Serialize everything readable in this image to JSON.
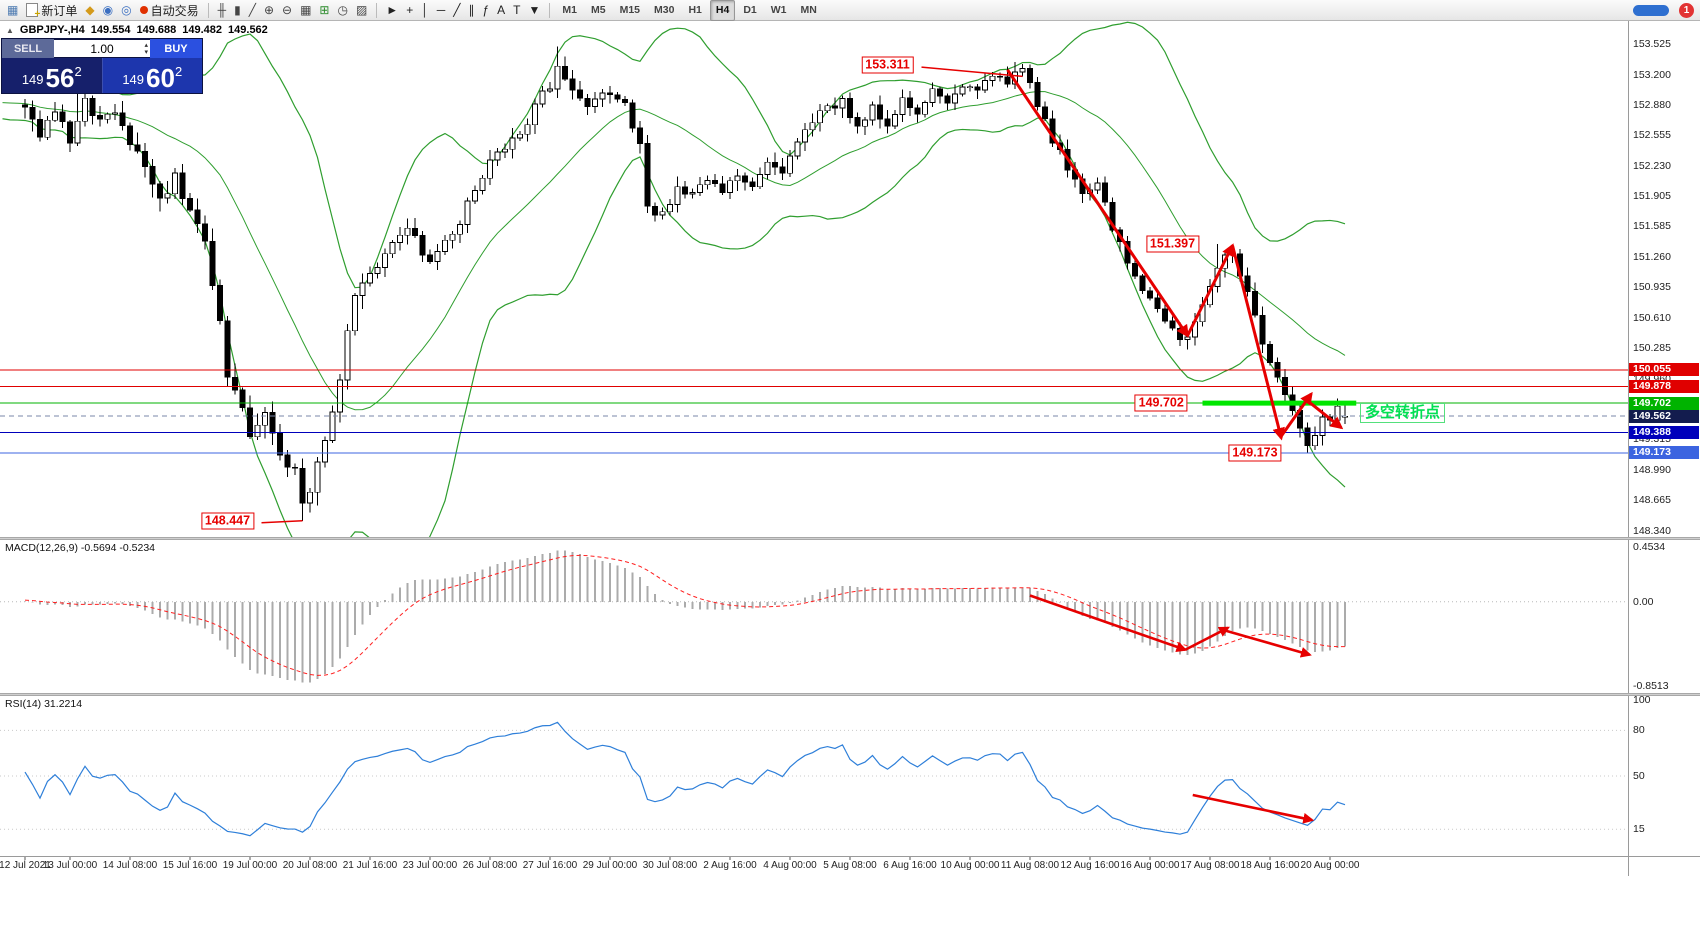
{
  "toolbar": {
    "items": [
      {
        "kind": "icon",
        "name": "new-chart-icon",
        "glyph": "▦",
        "color": "#4a78b0"
      },
      {
        "kind": "labeled",
        "name": "new-order-button",
        "label": "新订单"
      },
      {
        "kind": "icon",
        "name": "quotes-icon",
        "glyph": "◆",
        "color": "#d49a1a"
      },
      {
        "kind": "icon",
        "name": "market-watch-icon",
        "glyph": "◉",
        "color": "#3a6ec0"
      },
      {
        "kind": "icon",
        "name": "data-window-icon",
        "glyph": "◎",
        "color": "#3a6ec0"
      },
      {
        "kind": "labeled",
        "name": "auto-trading-button",
        "dot": "#e03000",
        "label": "自动交易"
      },
      {
        "kind": "sep"
      },
      {
        "kind": "icon",
        "name": "bar-chart-icon",
        "glyph": "╫",
        "color": "#444"
      },
      {
        "kind": "icon",
        "name": "candlestick-chart-icon",
        "glyph": "▮",
        "color": "#444"
      },
      {
        "kind": "icon",
        "name": "line-chart-icon",
        "glyph": "╱",
        "color": "#444"
      },
      {
        "kind": "icon",
        "name": "zoom-in-icon",
        "glyph": "⊕",
        "color": "#444"
      },
      {
        "kind": "icon",
        "name": "zoom-out-icon",
        "glyph": "⊖",
        "color": "#444"
      },
      {
        "kind": "icon",
        "name": "tile-windows-icon",
        "glyph": "▦",
        "color": "#444"
      },
      {
        "kind": "icon",
        "name": "indicators-icon",
        "glyph": "⊞",
        "color": "#2a8a2a"
      },
      {
        "kind": "icon",
        "name": "periods-icon",
        "glyph": "◷",
        "color": "#444"
      },
      {
        "kind": "icon",
        "name": "templates-icon",
        "glyph": "▨",
        "color": "#444"
      },
      {
        "kind": "sep"
      },
      {
        "kind": "icon",
        "name": "cursor-icon",
        "glyph": "►",
        "color": "#222"
      },
      {
        "kind": "icon",
        "name": "crosshair-icon",
        "glyph": "+",
        "color": "#222"
      },
      {
        "kind": "icon",
        "name": "vertical-line-icon",
        "glyph": "│",
        "color": "#222"
      },
      {
        "kind": "icon",
        "name": "horizontal-line-icon",
        "glyph": "─",
        "color": "#222"
      },
      {
        "kind": "icon",
        "name": "trendline-icon",
        "glyph": "╱",
        "color": "#222"
      },
      {
        "kind": "icon",
        "name": "equidistant-channel-icon",
        "glyph": "∥",
        "color": "#222"
      },
      {
        "kind": "icon",
        "name": "fibonacci-icon",
        "glyph": "ƒ",
        "color": "#222"
      },
      {
        "kind": "icon",
        "name": "text-icon",
        "glyph": "A",
        "color": "#222"
      },
      {
        "kind": "icon",
        "name": "text-label-icon",
        "glyph": "T",
        "color": "#222"
      },
      {
        "kind": "icon",
        "name": "arrows-tool-icon",
        "glyph": "▼",
        "color": "#222"
      },
      {
        "kind": "sep"
      },
      {
        "kind": "tf",
        "name": "timeframe-m1",
        "label": "M1"
      },
      {
        "kind": "tf",
        "name": "timeframe-m5",
        "label": "M5"
      },
      {
        "kind": "tf",
        "name": "timeframe-m15",
        "label": "M15"
      },
      {
        "kind": "tf",
        "name": "timeframe-m30",
        "label": "M30"
      },
      {
        "kind": "tf",
        "name": "timeframe-h1",
        "label": "H1"
      },
      {
        "kind": "tf",
        "name": "timeframe-h4",
        "label": "H4",
        "active": true
      },
      {
        "kind": "tf",
        "name": "timeframe-d1",
        "label": "D1"
      },
      {
        "kind": "tf",
        "name": "timeframe-w1",
        "label": "W1"
      },
      {
        "kind": "tf",
        "name": "timeframe-mn",
        "label": "MN"
      },
      {
        "kind": "spacer"
      },
      {
        "kind": "pill",
        "name": "chart-scroll-thumb"
      },
      {
        "kind": "badge",
        "name": "notification-badge",
        "label": "1"
      }
    ]
  },
  "chart_header": {
    "symbol_period": "GBPJPY-,H4",
    "open": "149.554",
    "high": "149.688",
    "low": "149.482",
    "close": "149.562"
  },
  "trade_panel": {
    "sell_label": "SELL",
    "buy_label": "BUY",
    "volume": "1.00",
    "sell_price": {
      "prefix": "149",
      "pips": "56",
      "point": "2"
    },
    "buy_price": {
      "prefix": "149",
      "pips": "60",
      "point": "2"
    }
  },
  "macd_panel": {
    "label": "MACD(12,26,9) -0.5694 -0.5234",
    "scale_top": "0.4534",
    "scale_zero": "0.00",
    "scale_bottom": "-0.8513"
  },
  "rsi_panel": {
    "label": "RSI(14) 31.2214",
    "scale": [
      {
        "text": "100",
        "value": 100
      },
      {
        "text": "80",
        "value": 80
      },
      {
        "text": "50",
        "value": 50
      },
      {
        "text": "15",
        "value": 15
      }
    ]
  },
  "price_scale": {
    "labels": [
      {
        "text": "153.525",
        "price": 153.525
      },
      {
        "text": "153.200",
        "price": 153.2
      },
      {
        "text": "152.880",
        "price": 152.88
      },
      {
        "text": "152.555",
        "price": 152.555
      },
      {
        "text": "152.230",
        "price": 152.23
      },
      {
        "text": "151.905",
        "price": 151.905
      },
      {
        "text": "151.585",
        "price": 151.585
      },
      {
        "text": "151.260",
        "price": 151.26
      },
      {
        "text": "150.935",
        "price": 150.935
      },
      {
        "text": "150.610",
        "price": 150.61
      },
      {
        "text": "150.285",
        "price": 150.285
      },
      {
        "text": "149.960",
        "price": 149.96
      },
      {
        "text": "149.315",
        "price": 149.315
      },
      {
        "text": "148.990",
        "price": 148.99
      },
      {
        "text": "148.665",
        "price": 148.665
      },
      {
        "text": "148.340",
        "price": 148.34
      }
    ],
    "tags": [
      {
        "text": "150.055",
        "price": 150.055,
        "bg": "#e00000"
      },
      {
        "text": "149.878",
        "price": 149.878,
        "bg": "#e00000"
      },
      {
        "text": "149.702",
        "price": 149.702,
        "bg": "#00b300"
      },
      {
        "text": "149.562",
        "price": 149.562,
        "bg": "#131c4e"
      },
      {
        "text": "149.388",
        "price": 149.388,
        "bg": "#0000bb"
      },
      {
        "text": "149.173",
        "price": 149.173,
        "bg": "#3c64e0"
      }
    ]
  },
  "date_axis": {
    "labels": [
      {
        "text": "12 Jul 2021",
        "bar": 0
      },
      {
        "text": "13 Jul 00:00",
        "bar": 6
      },
      {
        "text": "14 Jul 08:00",
        "bar": 14
      },
      {
        "text": "15 Jul 16:00",
        "bar": 22
      },
      {
        "text": "19 Jul 00:00",
        "bar": 30
      },
      {
        "text": "20 Jul 08:00",
        "bar": 38
      },
      {
        "text": "21 Jul 16:00",
        "bar": 46
      },
      {
        "text": "23 Jul 00:00",
        "bar": 54
      },
      {
        "text": "26 Jul 08:00",
        "bar": 62
      },
      {
        "text": "27 Jul 16:00",
        "bar": 70
      },
      {
        "text": "29 Jul 00:00",
        "bar": 78
      },
      {
        "text": "30 Jul 08:00",
        "bar": 86
      },
      {
        "text": "2 Aug 16:00",
        "bar": 94
      },
      {
        "text": "4 Aug 00:00",
        "bar": 102
      },
      {
        "text": "5 Aug 08:00",
        "bar": 110
      },
      {
        "text": "6 Aug 16:00",
        "bar": 118
      },
      {
        "text": "10 Aug 00:00",
        "bar": 126
      },
      {
        "text": "11 Aug 08:00",
        "bar": 134
      },
      {
        "text": "12 Aug 16:00",
        "bar": 142
      },
      {
        "text": "16 Aug 00:00",
        "bar": 150
      },
      {
        "text": "17 Aug 08:00",
        "bar": 158
      },
      {
        "text": "18 Aug 16:00",
        "bar": 166
      },
      {
        "text": "20 Aug 00:00",
        "bar": 174
      }
    ]
  },
  "annotations": {
    "price_labels": [
      {
        "text": "153.311",
        "bar": 115,
        "price": 153.3,
        "leader_to_bar": 133,
        "leader_to_price": 153.18
      },
      {
        "text": "151.397",
        "bar": 153,
        "price": 151.4
      },
      {
        "text": "149.702",
        "bar": 151.5,
        "price": 149.702
      },
      {
        "text": "149.173",
        "bar": 164,
        "price": 149.17
      },
      {
        "text": "148.447",
        "bar": 27,
        "price": 148.45,
        "leader_to_bar": 37,
        "leader_to_price": 148.45
      }
    ],
    "price_arrows": [
      {
        "from": [
          131,
          153.25
        ],
        "to": [
          155,
          150.42
        ]
      },
      {
        "from": [
          155,
          150.42
        ],
        "to": [
          161,
          151.38
        ]
      },
      {
        "from": [
          161,
          151.38
        ],
        "to": [
          167.5,
          149.33
        ]
      },
      {
        "from": [
          167.5,
          149.35
        ],
        "to": [
          171.5,
          149.8
        ]
      },
      {
        "from": [
          170.8,
          149.74
        ],
        "to": [
          175.5,
          149.44
        ]
      }
    ],
    "macd_arrows": [
      {
        "from": [
          134,
          0.07
        ],
        "to": [
          154.7,
          -0.535
        ]
      },
      {
        "from": [
          154.7,
          -0.535
        ],
        "to": [
          160.4,
          -0.29
        ]
      },
      {
        "from": [
          160,
          -0.32
        ],
        "to": [
          171.3,
          -0.59
        ]
      }
    ],
    "rsi_arrows": [
      {
        "from": [
          155.7,
          37.5
        ],
        "to": [
          171.6,
          21
        ]
      }
    ],
    "support_zone": {
      "price": 149.702,
      "from_bar": 157,
      "to_bar": 177.5,
      "color": "#00e600"
    },
    "note_text": {
      "text": "多空转折点",
      "bar": 178,
      "price": 149.6,
      "color": "#00e052"
    }
  },
  "chart_data": {
    "type": "candlestick",
    "title": "GBPJPY- H4 with Bollinger Bands, MACD(12,26,9), RSI(14)",
    "symbol": "GBPJPY-",
    "timeframe": "H4",
    "current_bar_ohlc": {
      "open": 149.554,
      "high": 149.688,
      "low": 149.482,
      "close": 149.562
    },
    "ylim": [
      148.34,
      153.525
    ],
    "bar_count": 177,
    "close_path_waypoints": [
      [
        0,
        152.9
      ],
      [
        2,
        152.5
      ],
      [
        4,
        152.85
      ],
      [
        6,
        152.55
      ],
      [
        8,
        152.95
      ],
      [
        10,
        152.65
      ],
      [
        12,
        152.75
      ],
      [
        14,
        152.5
      ],
      [
        16,
        152.2
      ],
      [
        18,
        151.9
      ],
      [
        20,
        152.1
      ],
      [
        22,
        151.8
      ],
      [
        24,
        151.35
      ],
      [
        26,
        150.6
      ],
      [
        27,
        150.0
      ],
      [
        28,
        149.8
      ],
      [
        30,
        149.35
      ],
      [
        32,
        149.55
      ],
      [
        34,
        149.2
      ],
      [
        36,
        148.95
      ],
      [
        37,
        148.6
      ],
      [
        38,
        148.8
      ],
      [
        40,
        149.3
      ],
      [
        42,
        150.0
      ],
      [
        44,
        150.85
      ],
      [
        46,
        151.05
      ],
      [
        48,
        151.3
      ],
      [
        51,
        151.55
      ],
      [
        54,
        151.2
      ],
      [
        57,
        151.5
      ],
      [
        60,
        151.95
      ],
      [
        63,
        152.4
      ],
      [
        66,
        152.55
      ],
      [
        68,
        152.85
      ],
      [
        70,
        153.1
      ],
      [
        71,
        153.3
      ],
      [
        73,
        153.0
      ],
      [
        75,
        152.85
      ],
      [
        78,
        153.0
      ],
      [
        80,
        152.9
      ],
      [
        82,
        152.45
      ],
      [
        83,
        151.8
      ],
      [
        85,
        151.7
      ],
      [
        87,
        152.0
      ],
      [
        89,
        151.9
      ],
      [
        91,
        152.1
      ],
      [
        93,
        151.9
      ],
      [
        95,
        152.15
      ],
      [
        97,
        152.0
      ],
      [
        99,
        152.3
      ],
      [
        101,
        152.15
      ],
      [
        103,
        152.45
      ],
      [
        105,
        152.7
      ],
      [
        107,
        152.85
      ],
      [
        109,
        152.9
      ],
      [
        111,
        152.65
      ],
      [
        113,
        152.85
      ],
      [
        115,
        152.6
      ],
      [
        117,
        152.95
      ],
      [
        119,
        152.75
      ],
      [
        121,
        153.0
      ],
      [
        123,
        152.9
      ],
      [
        125,
        153.05
      ],
      [
        127,
        153.0
      ],
      [
        129,
        153.2
      ],
      [
        131,
        153.1
      ],
      [
        133,
        153.25
      ],
      [
        135,
        152.9
      ],
      [
        137,
        152.5
      ],
      [
        139,
        152.2
      ],
      [
        141,
        151.9
      ],
      [
        143,
        152.0
      ],
      [
        145,
        151.6
      ],
      [
        147,
        151.2
      ],
      [
        149,
        150.9
      ],
      [
        151,
        150.7
      ],
      [
        153,
        150.45
      ],
      [
        155,
        150.35
      ],
      [
        157,
        150.8
      ],
      [
        159,
        151.15
      ],
      [
        161,
        151.3
      ],
      [
        163,
        150.9
      ],
      [
        165,
        150.3
      ],
      [
        167,
        149.95
      ],
      [
        169,
        149.6
      ],
      [
        171,
        149.3
      ],
      [
        173,
        149.5
      ],
      [
        175,
        149.62
      ],
      [
        176,
        149.56
      ]
    ],
    "forced_bars": [
      {
        "bar": 7,
        "h": 153.36
      },
      {
        "bar": 37,
        "l": 148.447
      },
      {
        "bar": 71,
        "h": 153.5
      },
      {
        "bar": 133,
        "h": 153.311
      },
      {
        "bar": 159,
        "h": 151.397
      },
      {
        "bar": 171,
        "l": 149.173
      },
      {
        "bar": 176,
        "o": 149.554,
        "h": 149.688,
        "l": 149.482,
        "c": 149.562
      }
    ],
    "indicators": {
      "bollinger": {
        "period": 20,
        "deviation": 2
      },
      "macd": {
        "fast": 12,
        "slow": 26,
        "signal": 9,
        "value": -0.5694,
        "signal_value": -0.5234,
        "scale_range": [
          -0.8513,
          0.4534
        ]
      },
      "rsi": {
        "period": 14,
        "value": 31.2214,
        "levels": [
          15,
          50,
          80
        ]
      }
    },
    "horizontal_lines": [
      {
        "price": 150.055,
        "color": "#e00000",
        "style": "solid"
      },
      {
        "price": 149.878,
        "color": "#e00000",
        "style": "solid"
      },
      {
        "price": 149.702,
        "color": "#00b300",
        "style": "solid"
      },
      {
        "price": 149.562,
        "color": "#7a87a8",
        "style": "dashed"
      },
      {
        "price": 149.388,
        "color": "#0000bb",
        "style": "solid"
      },
      {
        "price": 149.173,
        "color": "#3c64e0",
        "style": "solid"
      }
    ],
    "key_price_points": [
      153.311,
      151.397,
      150.055,
      149.878,
      149.702,
      149.562,
      149.388,
      149.173,
      148.447
    ]
  }
}
